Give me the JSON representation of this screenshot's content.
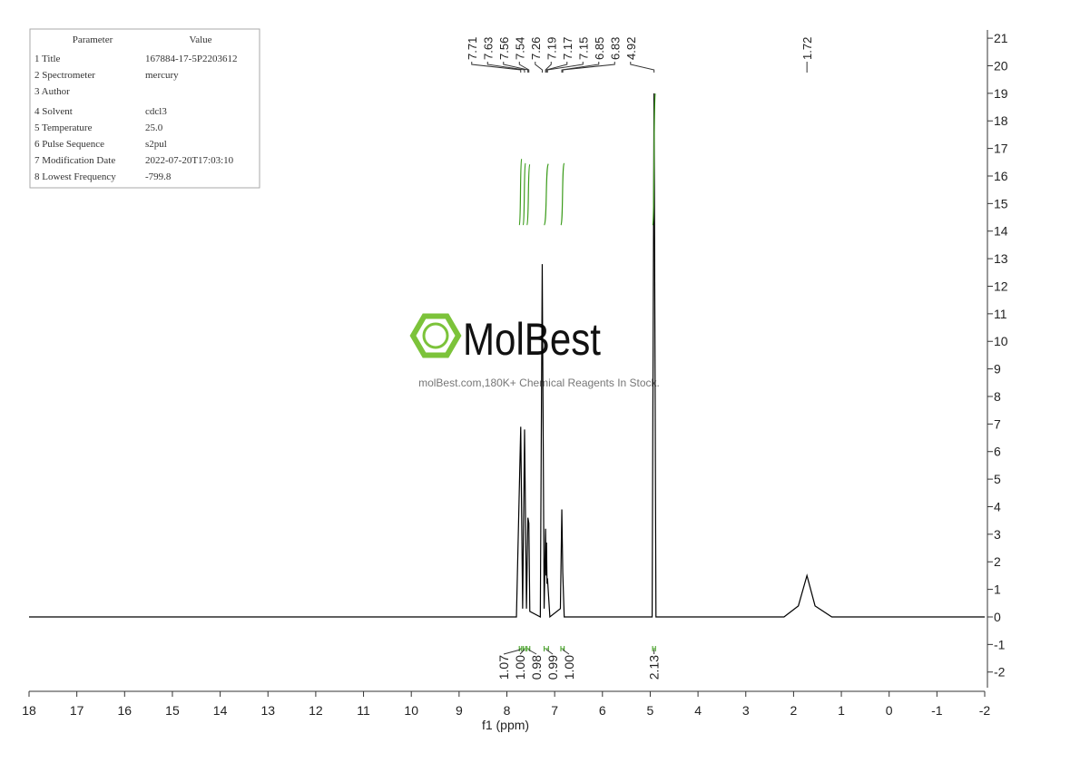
{
  "parameters": {
    "header": [
      "Parameter",
      "Value"
    ],
    "rows": [
      [
        "1 Title",
        "167884-17-5P2203612"
      ],
      [
        "2 Spectrometer",
        "mercury"
      ],
      [
        "3 Author"
      ],
      [
        "4 Solvent",
        "cdcl3"
      ],
      [
        "5 Temperature",
        "25.0"
      ],
      [
        "6 Pulse Sequence",
        "s2pul"
      ],
      [
        "7 Modification Date",
        "2022-07-20T17:03:10"
      ],
      [
        "8 Lowest Frequency",
        "-799.8"
      ]
    ]
  },
  "watermark": {
    "title": "MolBest",
    "subtitle": "molBest.com,180K+ Chemical Reagents In Stock."
  },
  "chart_data": {
    "type": "nmr",
    "xlabel": "f1 (ppm)",
    "xlim": [
      18,
      -2
    ],
    "xticks": [
      18,
      17,
      16,
      15,
      14,
      13,
      12,
      11,
      10,
      9,
      8,
      7,
      6,
      5,
      4,
      3,
      2,
      1,
      0,
      -1,
      -2
    ],
    "ylim": [
      -2.7,
      21.3
    ],
    "yticks": [
      -2,
      -1,
      0,
      1,
      2,
      3,
      4,
      5,
      6,
      7,
      8,
      9,
      10,
      11,
      12,
      13,
      14,
      15,
      16,
      17,
      18,
      19,
      20,
      21
    ],
    "x": [
      18,
      7.8,
      7.71,
      7.67,
      7.63,
      7.59,
      7.56,
      7.54,
      7.52,
      7.3,
      7.26,
      7.22,
      7.19,
      7.18,
      7.17,
      7.16,
      7.15,
      7.1,
      6.88,
      6.85,
      6.83,
      6.8,
      4.96,
      4.92,
      4.88,
      2.2,
      1.9,
      1.72,
      1.55,
      1.2,
      -2
    ],
    "series": [
      {
        "color": "#000000",
        "values": [
          0,
          0,
          6.9,
          0.3,
          6.8,
          0.3,
          3.6,
          3.4,
          0.2,
          0,
          12.8,
          0.3,
          3.2,
          1.5,
          2.7,
          1.2,
          1.4,
          0,
          0.3,
          3.9,
          1.6,
          0,
          0,
          19,
          0,
          0,
          0.4,
          1.5,
          0.4,
          0,
          0
        ]
      }
    ],
    "peaks": [
      7.71,
      7.63,
      7.56,
      7.54,
      7.26,
      7.19,
      7.17,
      7.15,
      6.85,
      6.83,
      4.92,
      1.72
    ],
    "integrals": {
      "color": "#3c9c1c",
      "ranges": [
        [
          7.74,
          7.69
        ],
        [
          7.66,
          7.61
        ],
        [
          7.58,
          7.52
        ],
        [
          7.22,
          7.13
        ],
        [
          6.87,
          6.8
        ],
        [
          4.95,
          4.89
        ]
      ],
      "values": [
        1.07,
        1,
        0.98,
        0.99,
        1,
        2.13
      ],
      "value_labels": [
        "1.07",
        "1.00",
        "0.98",
        "0.99",
        "1.00",
        "2.13"
      ]
    }
  }
}
